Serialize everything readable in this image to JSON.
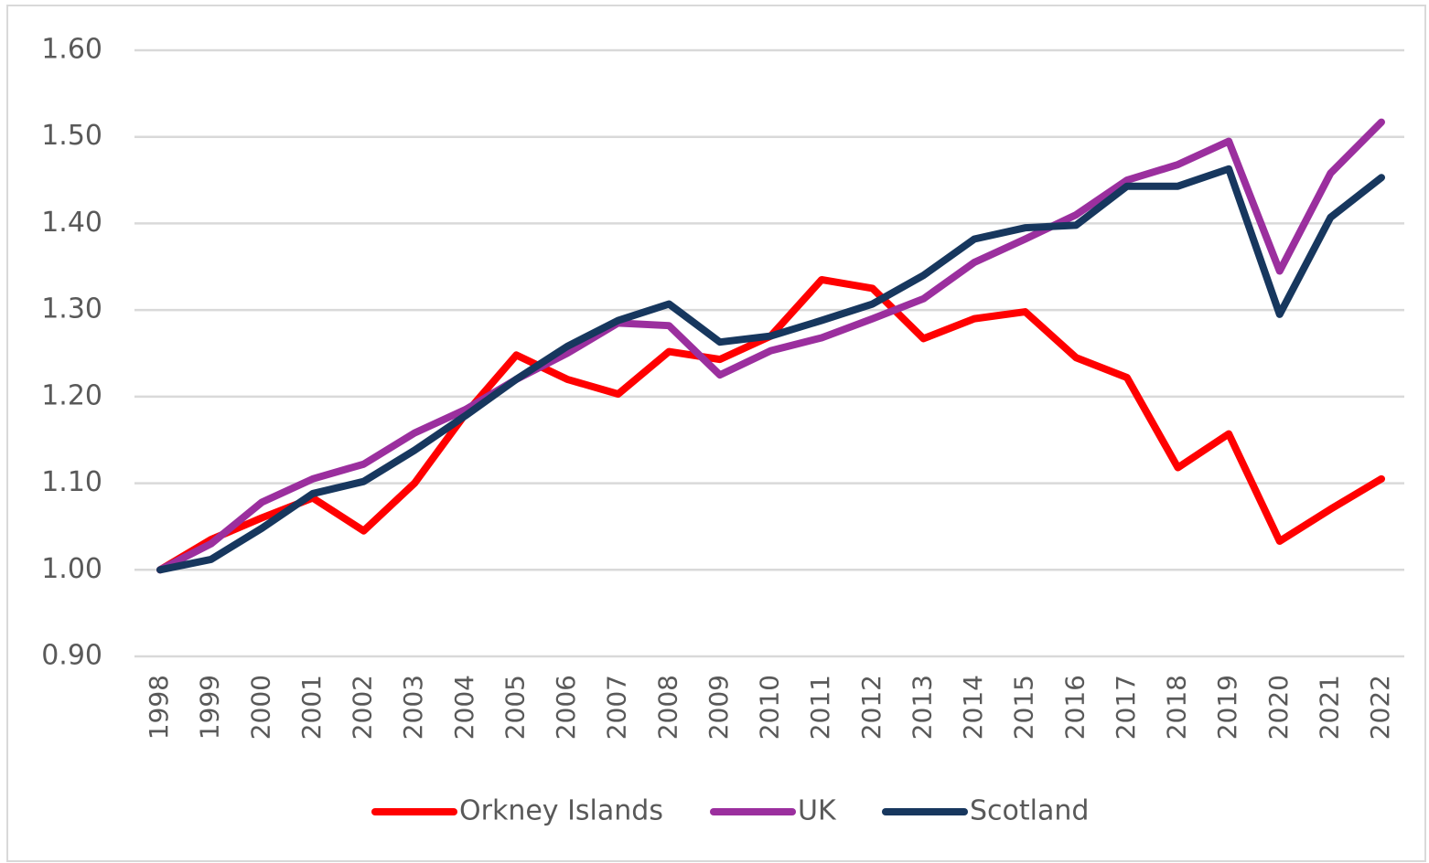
{
  "chart_data": {
    "type": "line",
    "categories": [
      "1998",
      "1999",
      "2000",
      "2001",
      "2002",
      "2003",
      "2004",
      "2005",
      "2006",
      "2007",
      "2008",
      "2009",
      "2010",
      "2011",
      "2012",
      "2013",
      "2014",
      "2015",
      "2016",
      "2017",
      "2018",
      "2019",
      "2020",
      "2021",
      "2022"
    ],
    "series": [
      {
        "name": "Orkney Islands",
        "color": "#ff0000",
        "values": [
          1.0,
          1.035,
          1.06,
          1.083,
          1.045,
          1.1,
          1.18,
          1.248,
          1.22,
          1.203,
          1.252,
          1.243,
          1.27,
          1.335,
          1.325,
          1.267,
          1.29,
          1.298,
          1.245,
          1.222,
          1.118,
          1.157,
          1.033,
          1.07,
          1.105
        ]
      },
      {
        "name": "UK",
        "color": "#9b2f9e",
        "values": [
          1.0,
          1.03,
          1.078,
          1.105,
          1.122,
          1.158,
          1.185,
          1.22,
          1.25,
          1.285,
          1.282,
          1.225,
          1.253,
          1.268,
          1.29,
          1.313,
          1.355,
          1.382,
          1.41,
          1.45,
          1.468,
          1.495,
          1.345,
          1.458,
          1.517
        ]
      },
      {
        "name": "Scotland",
        "color": "#17375e",
        "values": [
          1.0,
          1.012,
          1.048,
          1.088,
          1.102,
          1.138,
          1.178,
          1.22,
          1.258,
          1.288,
          1.307,
          1.263,
          1.27,
          1.288,
          1.307,
          1.34,
          1.382,
          1.395,
          1.398,
          1.443,
          1.443,
          1.463,
          1.295,
          1.407,
          1.453
        ]
      }
    ],
    "ylim": [
      0.9,
      1.6
    ],
    "yticks": [
      {
        "value": 0.9,
        "label": "0.90"
      },
      {
        "value": 1.0,
        "label": "1.00"
      },
      {
        "value": 1.1,
        "label": "1.10"
      },
      {
        "value": 1.2,
        "label": "1.20"
      },
      {
        "value": 1.3,
        "label": "1.30"
      },
      {
        "value": 1.4,
        "label": "1.40"
      },
      {
        "value": 1.5,
        "label": "1.50"
      },
      {
        "value": 1.6,
        "label": "1.60"
      }
    ],
    "grid": true,
    "legend": "bottom"
  }
}
